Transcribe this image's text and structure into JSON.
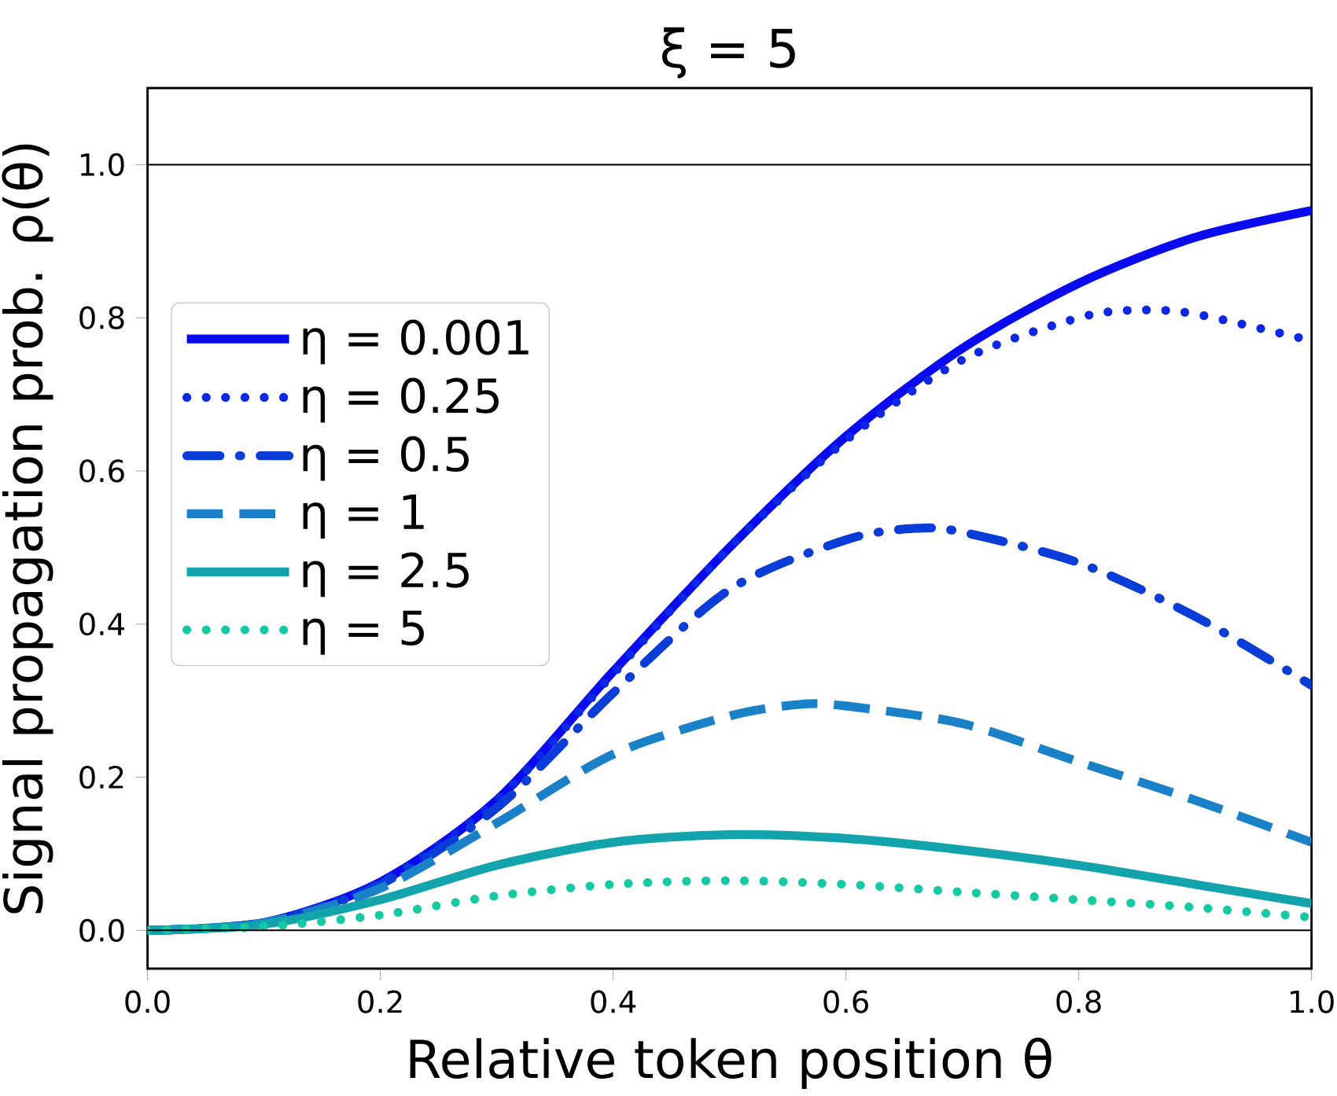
{
  "chart_data": {
    "type": "line",
    "title": "ξ = 5",
    "xlabel": "Relative token position θ",
    "ylabel": "Signal propagation prob. ρ(θ)",
    "x": [
      0,
      0.1,
      0.2,
      0.3,
      0.4,
      0.5,
      0.6,
      0.7,
      0.8,
      0.9,
      1.0
    ],
    "series": [
      {
        "name": "η = 0.001",
        "color": "#0a0af0",
        "line_style": "solid",
        "values": [
          0,
          0.01,
          0.063,
          0.17,
          0.338,
          0.5,
          0.645,
          0.76,
          0.845,
          0.905,
          0.94
        ]
      },
      {
        "name": "η = 0.25",
        "color": "#0a28e6",
        "line_style": "dotted",
        "x": [
          0,
          0.1,
          0.2,
          0.3,
          0.4,
          0.5,
          0.6,
          0.7,
          0.8,
          0.85,
          0.9,
          1.0
        ],
        "values": [
          0,
          0.01,
          0.063,
          0.17,
          0.335,
          0.5,
          0.64,
          0.745,
          0.8,
          0.81,
          0.805,
          0.77
        ]
      },
      {
        "name": "η = 0.5",
        "color": "#0a3cd8",
        "line_style": "dashdot",
        "x": [
          0,
          0.1,
          0.2,
          0.3,
          0.4,
          0.5,
          0.6,
          0.66,
          0.7,
          0.8,
          0.9,
          1.0
        ],
        "values": [
          0,
          0.01,
          0.06,
          0.16,
          0.31,
          0.445,
          0.51,
          0.525,
          0.52,
          0.48,
          0.41,
          0.32
        ]
      },
      {
        "name": "η = 1",
        "color": "#1a80c8",
        "line_style": "dashed",
        "x": [
          0,
          0.1,
          0.2,
          0.3,
          0.4,
          0.5,
          0.56,
          0.6,
          0.7,
          0.8,
          0.9,
          1.0
        ],
        "values": [
          0,
          0.01,
          0.055,
          0.14,
          0.23,
          0.28,
          0.295,
          0.293,
          0.27,
          0.22,
          0.17,
          0.115
        ]
      },
      {
        "name": "η = 2.5",
        "color": "#13a3ac",
        "line_style": "solid",
        "values": [
          0,
          0.008,
          0.04,
          0.085,
          0.115,
          0.125,
          0.12,
          0.105,
          0.085,
          0.06,
          0.035
        ]
      },
      {
        "name": "η = 5",
        "color": "#16c9a5",
        "line_style": "dotted",
        "values": [
          0,
          0.005,
          0.02,
          0.045,
          0.06,
          0.065,
          0.06,
          0.05,
          0.04,
          0.03,
          0.017
        ]
      }
    ],
    "xlim": [
      0,
      1
    ],
    "ylim": [
      -0.05,
      1.1
    ],
    "xticks": [
      {
        "value": 0,
        "label": "0.0"
      },
      {
        "value": 0.2,
        "label": "0.2"
      },
      {
        "value": 0.4,
        "label": "0.4"
      },
      {
        "value": 0.6,
        "label": "0.6"
      },
      {
        "value": 0.8,
        "label": "0.8"
      },
      {
        "value": 1,
        "label": "1.0"
      }
    ],
    "yticks": [
      {
        "value": 0,
        "label": "0.0"
      },
      {
        "value": 0.2,
        "label": "0.2"
      },
      {
        "value": 0.4,
        "label": "0.4"
      },
      {
        "value": 0.6,
        "label": "0.6"
      },
      {
        "value": 0.8,
        "label": "0.8"
      },
      {
        "value": 1,
        "label": "1.0"
      }
    ],
    "ref_lines": [
      {
        "axis": "y",
        "value": 0,
        "color": "#000000"
      },
      {
        "axis": "y",
        "value": 1,
        "color": "#000000"
      }
    ],
    "legend": "left",
    "grid": false,
    "marker": "none"
  }
}
